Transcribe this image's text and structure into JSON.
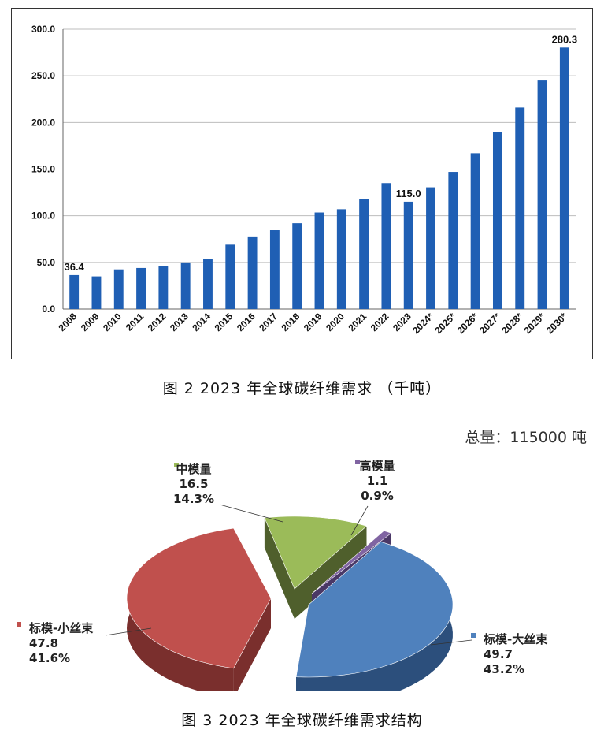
{
  "chart_data": [
    {
      "type": "bar",
      "title": "",
      "xlabel": "",
      "ylabel": "",
      "categories": [
        "2008",
        "2009",
        "2010",
        "2011",
        "2012",
        "2013",
        "2014",
        "2015",
        "2016",
        "2017",
        "2018",
        "2019",
        "2020",
        "2021",
        "2022",
        "2023",
        "2024*",
        "2025*",
        "2026*",
        "2027*",
        "2028*",
        "2029*",
        "2030*"
      ],
      "values": [
        36.4,
        35.0,
        42.5,
        44.0,
        46.0,
        50.0,
        53.5,
        69.0,
        77.0,
        84.5,
        92.0,
        103.5,
        107.0,
        118.0,
        135.0,
        115.0,
        130.5,
        147.0,
        167.0,
        190.0,
        216.0,
        245.0,
        280.3
      ],
      "data_labels": [
        {
          "index": 0,
          "text": "36.4"
        },
        {
          "index": 15,
          "text": "115.0"
        },
        {
          "index": 22,
          "text": "280.3"
        }
      ],
      "ylim": [
        0,
        300
      ],
      "yticks": [
        "0.0",
        "50.0",
        "100.0",
        "150.0",
        "200.0",
        "250.0",
        "300.0"
      ],
      "grid": true,
      "bar_color": "#1f5fb4"
    },
    {
      "type": "pie",
      "title": "",
      "slices": [
        {
          "name": "标模-大丝束",
          "value": "49.7",
          "percent": "43.2%",
          "share": 43.2,
          "color": "#4f81bd"
        },
        {
          "name": "标模-小丝束",
          "value": "47.8",
          "percent": "41.6%",
          "share": 41.6,
          "color": "#c0504d"
        },
        {
          "name": "中模量",
          "value": "16.5",
          "percent": "14.3%",
          "share": 14.3,
          "color": "#9bbb59"
        },
        {
          "name": "高模量",
          "value": "1.1",
          "percent": "0.9%",
          "share": 0.9,
          "color": "#8064a2"
        }
      ],
      "annotation": "总量：115000 吨",
      "style": "3d-exploded"
    }
  ],
  "captions": {
    "fig2": "图 2  2023 年全球碳纤维需求  （千吨）",
    "fig3": "图 3  2023 年全球碳纤维需求结构"
  }
}
